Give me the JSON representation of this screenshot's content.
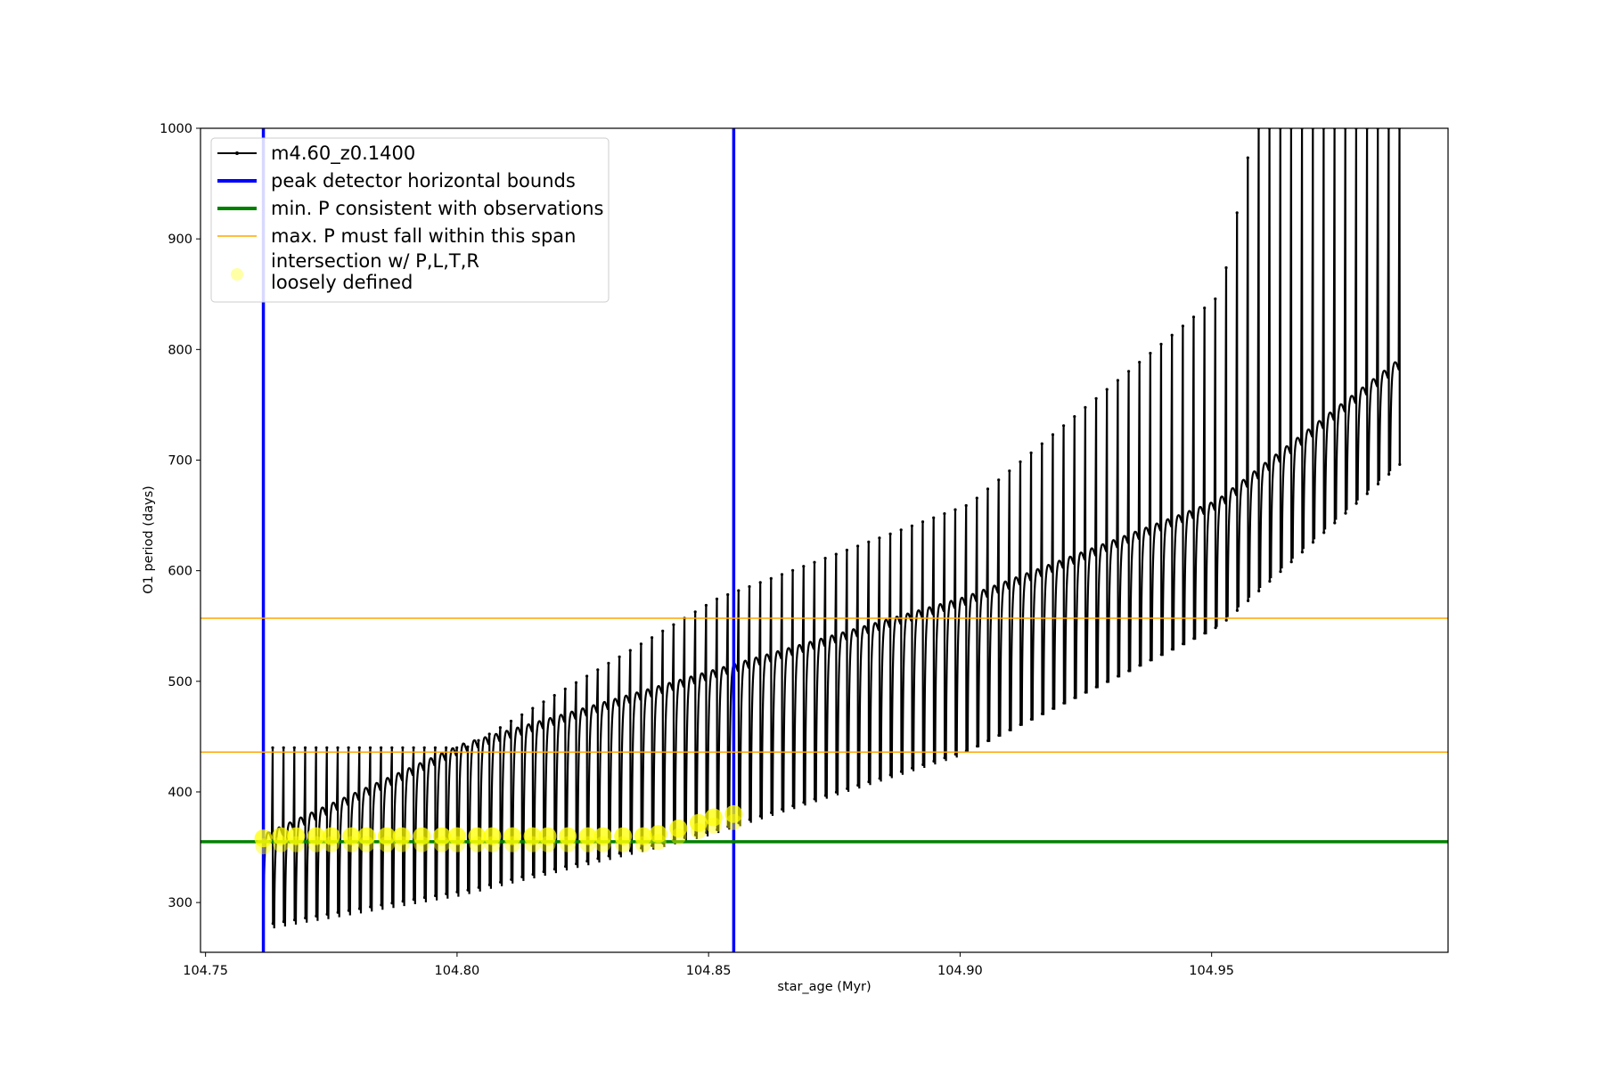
{
  "chart_data": {
    "type": "line",
    "title": "",
    "xlabel": "star_age (Myr)",
    "ylabel": "O1 period (days)",
    "xlim": [
      104.749,
      104.997
    ],
    "ylim": [
      255,
      1000
    ],
    "grid": false,
    "legend_position": "top-left",
    "x_ticks": [
      104.75,
      104.8,
      104.85,
      104.9,
      104.95
    ],
    "x_tick_labels": [
      "104.75",
      "104.80",
      "104.85",
      "104.90",
      "104.95"
    ],
    "y_ticks": [
      300,
      400,
      500,
      600,
      700,
      800,
      900,
      1000
    ],
    "y_tick_labels": [
      "300",
      "400",
      "500",
      "600",
      "700",
      "800",
      "900",
      "1000"
    ],
    "legend": [
      {
        "label": "m4.60_z0.1400",
        "style": "line-marker",
        "color": "#000000"
      },
      {
        "label": "peak detector horizontal bounds",
        "style": "line-thick",
        "color": "#0000ff"
      },
      {
        "label": "min. P consistent with observations",
        "style": "line-thick",
        "color": "#008000"
      },
      {
        "label": "max. P must fall within this span",
        "style": "line-thin",
        "color": "#ffa500"
      },
      {
        "label": "intersection w/ P,L,T,R\nloosely defined",
        "style": "circle",
        "color": "#ffff00"
      }
    ],
    "series": [
      {
        "name": "m4.60_z0.1400",
        "kind": "pulse-track",
        "color": "#000000",
        "x_start": 104.7615,
        "x_end": 104.9855,
        "pulse_count": 105,
        "upper_envelope": {
          "x": [
            104.7615,
            104.8,
            104.85,
            104.9,
            104.95,
            104.9855
          ],
          "y": [
            365,
            445,
            512,
            578,
            665,
            790
          ]
        },
        "lower_envelope": {
          "x": [
            104.7615,
            104.8,
            104.85,
            104.9,
            104.95,
            104.9855
          ],
          "y": [
            275,
            305,
            360,
            432,
            545,
            690
          ]
        },
        "spike_top": {
          "x": [
            104.8,
            104.85,
            104.9,
            104.95,
            104.9565
          ],
          "y": [
            440,
            575,
            660,
            850,
            1000
          ]
        }
      },
      {
        "name": "peak detector horizontal bounds",
        "kind": "vline",
        "color": "#0000ff",
        "x": [
          104.7615,
          104.855
        ]
      },
      {
        "name": "min. P consistent with observations",
        "kind": "hline",
        "color": "#008000",
        "y": [
          355
        ]
      },
      {
        "name": "max. P must fall within this span",
        "kind": "hline",
        "color": "#ffa500",
        "y": [
          436,
          557
        ]
      },
      {
        "name": "intersection w/ P,L,T,R loosely defined",
        "kind": "scatter",
        "color": "#ffff00",
        "x": [
          104.7615,
          104.765,
          104.768,
          104.772,
          104.775,
          104.779,
          104.782,
          104.786,
          104.789,
          104.793,
          104.797,
          104.8,
          104.804,
          104.807,
          104.811,
          104.815,
          104.818,
          104.822,
          104.826,
          104.829,
          104.833,
          104.837,
          104.84,
          104.844,
          104.848,
          104.851,
          104.855
        ],
        "y": [
          358,
          360,
          360,
          360,
          360,
          360,
          360,
          360,
          360,
          360,
          360,
          360,
          360,
          360,
          360,
          360,
          360,
          360,
          360,
          360,
          360,
          360,
          362,
          367,
          372,
          377,
          380
        ]
      }
    ]
  }
}
